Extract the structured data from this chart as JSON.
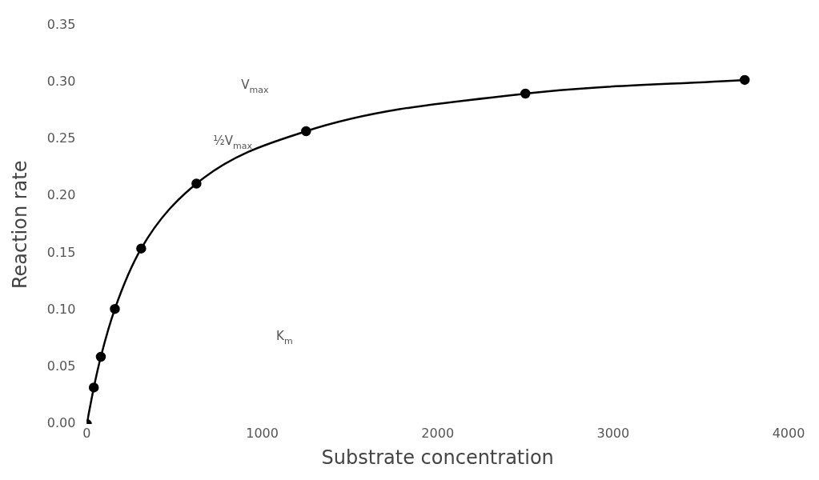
{
  "chart_data": {
    "type": "line",
    "xlabel": "Substrate concentration",
    "ylabel": "Reaction rate",
    "x": [
      0,
      40,
      80,
      160,
      310,
      625,
      1250,
      2500,
      3750
    ],
    "values": [
      0,
      0.032,
      0.059,
      0.101,
      0.154,
      0.211,
      0.257,
      0.29,
      0.302
    ],
    "color": "#000000",
    "marker": "circle",
    "line_style": "solid",
    "xlim": [
      0,
      4000
    ],
    "xticks": [
      0,
      1000,
      2000,
      3000,
      4000
    ],
    "ylim": [
      0,
      0.35
    ],
    "yticks": [
      {
        "value": 0,
        "label": "0.00"
      },
      {
        "value": 0.05,
        "label": "0.05"
      },
      {
        "value": 0.1,
        "label": "0.10"
      },
      {
        "value": 0.15,
        "label": "0.15"
      },
      {
        "value": 0.2,
        "label": "0.20"
      },
      {
        "value": 0.25,
        "label": "0.25"
      },
      {
        "value": 0.3,
        "label": "0.30"
      },
      {
        "value": 0.35,
        "label": "0.35"
      }
    ],
    "annotations": [
      "V$_{max}$",
      "½V$_{max}$",
      "K$_{m}$"
    ],
    "grid": false,
    "legend": false
  }
}
